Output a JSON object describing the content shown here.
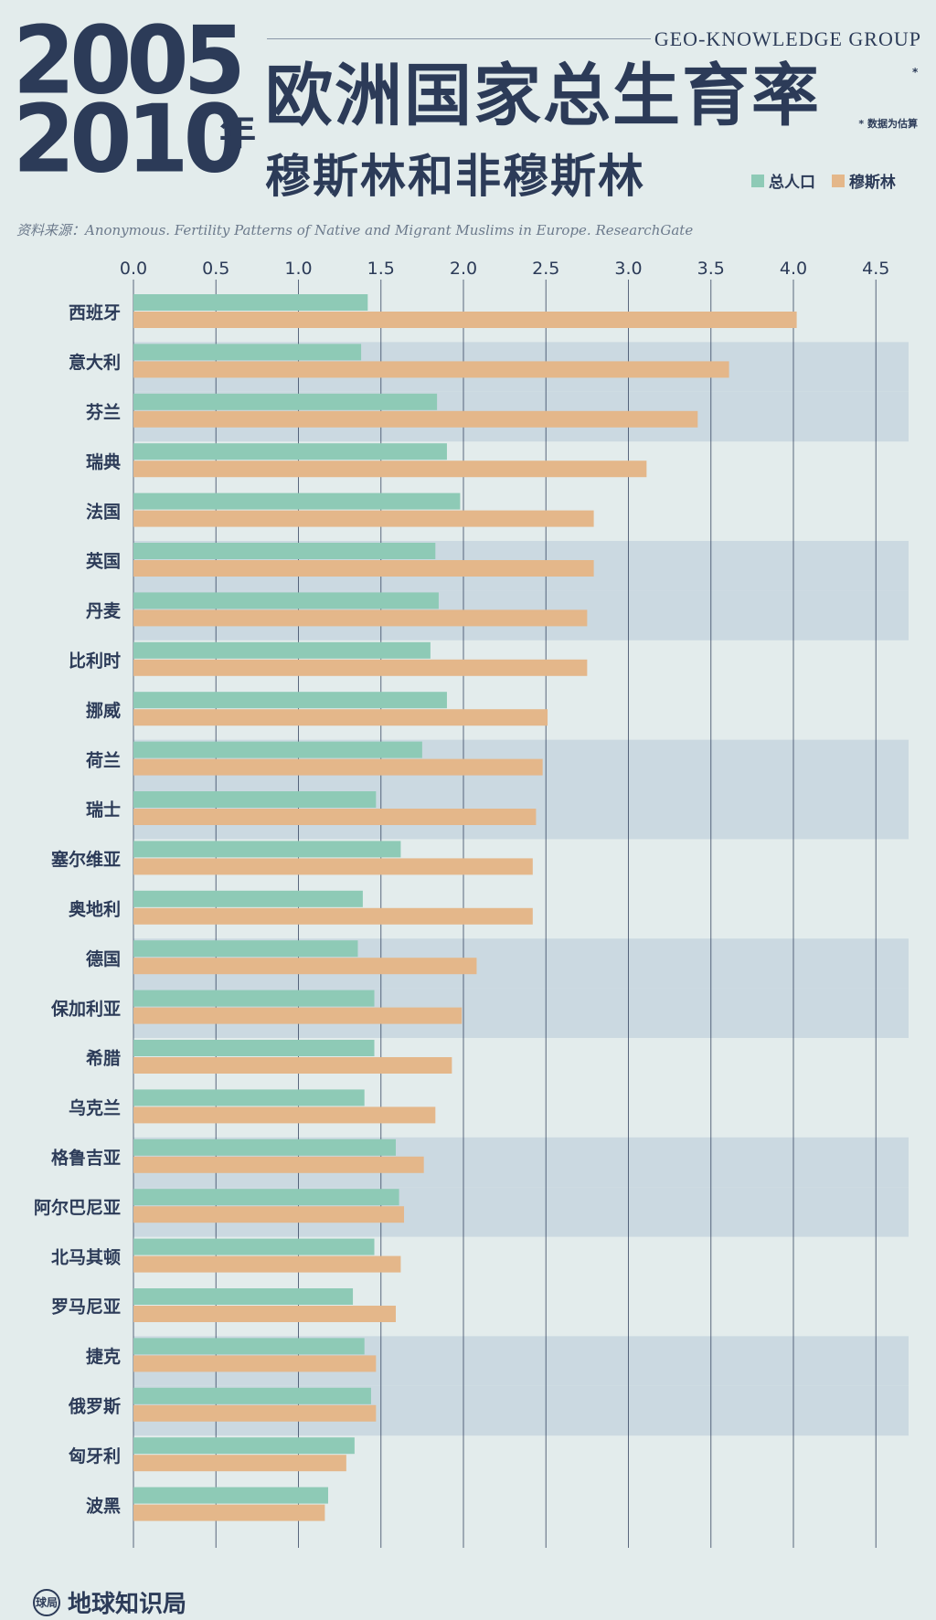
{
  "header": {
    "year_top": "2005",
    "year_bottom": "2010",
    "year_suffix": "年",
    "title": "欧洲国家总生育率",
    "asterisk": "*",
    "subtitle": "穆斯林和非穆斯林",
    "group": "GEO-KNOWLEDGE GROUP",
    "note": "* 数据为估算",
    "source": "资料来源：Anonymous. Fertility Patterns of Native and Migrant Muslims in Europe. ResearchGate"
  },
  "footer": {
    "logo_text": "球局",
    "name": "地球知识局"
  },
  "colors": {
    "background": "#e3ecec",
    "band": "#cbd9e1",
    "total": "#8ecab6",
    "muslim": "#e4b78a",
    "text": "#2c3b58",
    "grid": "#2c3b58"
  },
  "chart_data": {
    "type": "bar",
    "orientation": "horizontal",
    "categories": [
      "西班牙",
      "意大利",
      "芬兰",
      "瑞典",
      "法国",
      "英国",
      "丹麦",
      "比利时",
      "挪威",
      "荷兰",
      "瑞士",
      "塞尔维亚",
      "奥地利",
      "德国",
      "保加利亚",
      "希腊",
      "乌克兰",
      "格鲁吉亚",
      "阿尔巴尼亚",
      "北马其顿",
      "罗马尼亚",
      "捷克",
      "俄罗斯",
      "匈牙利",
      "波黑"
    ],
    "series": [
      {
        "name": "总人口",
        "color": "#8ecab6",
        "values": [
          1.42,
          1.38,
          1.84,
          1.9,
          1.98,
          1.83,
          1.85,
          1.8,
          1.9,
          1.75,
          1.47,
          1.62,
          1.39,
          1.36,
          1.46,
          1.46,
          1.4,
          1.59,
          1.61,
          1.46,
          1.33,
          1.4,
          1.44,
          1.34,
          1.18
        ]
      },
      {
        "name": "穆斯林",
        "color": "#e4b78a",
        "values": [
          4.02,
          3.61,
          3.42,
          3.11,
          2.79,
          2.79,
          2.75,
          2.75,
          2.51,
          2.48,
          2.44,
          2.42,
          2.42,
          2.08,
          1.99,
          1.93,
          1.83,
          1.76,
          1.64,
          1.62,
          1.59,
          1.47,
          1.47,
          1.29,
          1.16
        ]
      }
    ],
    "xlim": [
      0,
      4.7
    ],
    "xticks": [
      "0.0",
      "0.5",
      "1.0",
      "1.5",
      "2.0",
      "2.5",
      "3.0",
      "3.5",
      "4.0",
      "4.5"
    ],
    "legend": "top-right",
    "grid": true,
    "xlabel": "",
    "ylabel": ""
  }
}
